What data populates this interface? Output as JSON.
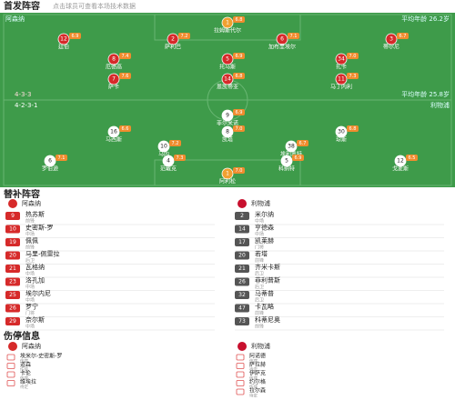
{
  "header": {
    "title": "首发阵容",
    "subtitle": "点击球员可查看本场技术数据"
  },
  "home": {
    "name": "阿森纳",
    "formation": "4-3-3",
    "note": "平均年龄 26.2岁"
  },
  "away": {
    "name": "利物浦",
    "formation": "4-2-3-1",
    "note": "平均年龄 25.8岁"
  },
  "home_lineup": [
    {
      "num": "1",
      "name": "拉姆斯代尔",
      "rating": "6.8"
    },
    {
      "num": "12",
      "name": "廷伯",
      "rating": "6.9"
    },
    {
      "num": "2",
      "name": "萨利巴",
      "rating": "7.2"
    },
    {
      "num": "6",
      "name": "加布里埃尔",
      "rating": "7.1"
    },
    {
      "num": "3",
      "name": "蒂尔尼",
      "rating": "6.7"
    },
    {
      "num": "8",
      "name": "厄德高",
      "rating": "7.4"
    },
    {
      "num": "5",
      "name": "托马斯",
      "rating": "6.9"
    },
    {
      "num": "34",
      "name": "扎卡",
      "rating": "7.0"
    },
    {
      "num": "7",
      "name": "萨卡",
      "rating": "7.6"
    },
    {
      "num": "14",
      "name": "恩凯蒂亚",
      "rating": "6.8"
    },
    {
      "num": "11",
      "name": "马丁内利",
      "rating": "7.3"
    }
  ],
  "away_lineup": [
    {
      "num": "9",
      "name": "菲尔米诺",
      "rating": "6.9"
    },
    {
      "num": "16",
      "name": "马西斯",
      "rating": "6.6"
    },
    {
      "num": "8",
      "name": "凯塔",
      "rating": "7.0"
    },
    {
      "num": "30",
      "name": "琼斯",
      "rating": "6.8"
    },
    {
      "num": "10",
      "name": "马内",
      "rating": "7.2"
    },
    {
      "num": "38",
      "name": "埃利奥特",
      "rating": "6.7"
    },
    {
      "num": "6",
      "name": "罗伯逊",
      "rating": "7.1"
    },
    {
      "num": "4",
      "name": "范戴克",
      "rating": "7.3"
    },
    {
      "num": "5",
      "name": "科纳特",
      "rating": "6.9"
    },
    {
      "num": "12",
      "name": "戈麦斯",
      "rating": "6.5"
    },
    {
      "num": "1",
      "name": "阿利松",
      "rating": "7.0"
    }
  ],
  "subs": {
    "title": "替补阵容",
    "home": [
      {
        "num": "9",
        "name": "热苏斯",
        "pos": "前锋"
      },
      {
        "num": "10",
        "name": "史密斯-罗",
        "pos": "中场"
      },
      {
        "num": "19",
        "name": "佩佩",
        "pos": "前锋"
      },
      {
        "num": "20",
        "name": "马里-佩雷拉",
        "pos": "后卫"
      },
      {
        "num": "21",
        "name": "瓦格纳",
        "pos": "中场"
      },
      {
        "num": "23",
        "name": "洛孔加",
        "pos": "中场"
      },
      {
        "num": "25",
        "name": "埃尔内尼",
        "pos": "中场"
      },
      {
        "num": "26",
        "name": "罗宁",
        "pos": "门将"
      },
      {
        "num": "29",
        "name": "奈尔斯",
        "pos": "中场"
      }
    ],
    "away": [
      {
        "num": "2",
        "name": "米尔纳",
        "pos": "中场"
      },
      {
        "num": "14",
        "name": "亨德森",
        "pos": "中场"
      },
      {
        "num": "17",
        "name": "凯莱赫",
        "pos": "门将"
      },
      {
        "num": "20",
        "name": "若塔",
        "pos": "前锋"
      },
      {
        "num": "21",
        "name": "齐米卡斯",
        "pos": "后卫"
      },
      {
        "num": "26",
        "name": "菲利普斯",
        "pos": "后卫"
      },
      {
        "num": "32",
        "name": "马蒂普",
        "pos": "后卫"
      },
      {
        "num": "47",
        "name": "卡瓦略",
        "pos": "前锋"
      },
      {
        "num": "73",
        "name": "科蒂尼奥",
        "pos": "前锋"
      }
    ]
  },
  "injuries": {
    "title": "伤停信息",
    "home": [
      {
        "name": "埃米尔-史密斯-罗",
        "reason": "伤病"
      },
      {
        "name": "道森",
        "reason": "伤病"
      },
      {
        "name": "卡伦",
        "reason": "伤病"
      },
      {
        "name": "维埃拉",
        "reason": "待定"
      }
    ],
    "away": [
      {
        "name": "阿诺德",
        "reason": "伤病"
      },
      {
        "name": "萨拉赫",
        "reason": "待定"
      },
      {
        "name": "伊萨克",
        "reason": "伤病"
      },
      {
        "name": "约尔格",
        "reason": "伤病"
      },
      {
        "name": "拉尔森",
        "reason": "待定"
      }
    ]
  }
}
